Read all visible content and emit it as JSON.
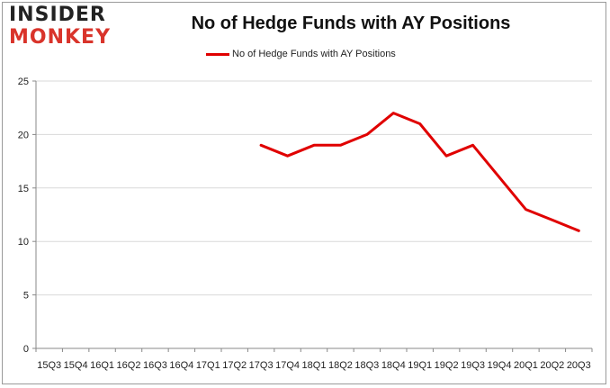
{
  "logo": {
    "line1": "INSIDER",
    "line2": "MONKEY"
  },
  "colors": {
    "series": "#e00000",
    "logo_dark": "#222222",
    "logo_accent": "#d9342b",
    "grid": "#d9d9d9"
  },
  "chart_data": {
    "type": "line",
    "title": "No of Hedge Funds with AY Positions",
    "xlabel": "",
    "ylabel": "",
    "ylim": [
      0,
      25
    ],
    "yticks": [
      0,
      5,
      10,
      15,
      20,
      25
    ],
    "grid": true,
    "legend_position": "top-center",
    "categories": [
      "15Q3",
      "15Q4",
      "16Q1",
      "16Q2",
      "16Q3",
      "16Q4",
      "17Q1",
      "17Q2",
      "17Q3",
      "17Q4",
      "18Q1",
      "18Q2",
      "18Q3",
      "18Q4",
      "19Q1",
      "19Q2",
      "19Q3",
      "19Q4",
      "20Q1",
      "20Q2",
      "20Q3"
    ],
    "series": [
      {
        "name": "No of Hedge Funds with AY Positions",
        "values": [
          null,
          null,
          null,
          null,
          null,
          null,
          null,
          null,
          19,
          18,
          19,
          19,
          20,
          22,
          21,
          18,
          19,
          16,
          13,
          12,
          11
        ]
      }
    ]
  }
}
